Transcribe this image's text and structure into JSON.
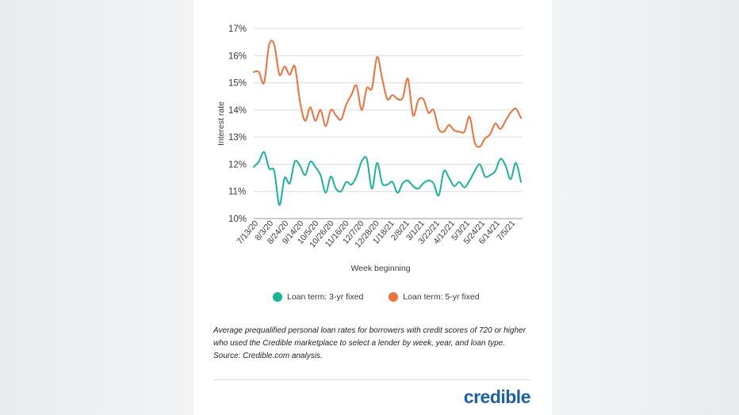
{
  "brand": {
    "logo_text": "credible"
  },
  "caption": "Average prequalified personal loan rates for borrowers with credit scores of 720 or higher who used the Credible marketplace to select a lender by week, year, and loan type. Source: Credible.com analysis.",
  "chart_data": {
    "type": "line",
    "title": "",
    "xlabel": "Week beginning",
    "ylabel": "Interest rate",
    "ylim": [
      10,
      17
    ],
    "yticks": [
      "10%",
      "11%",
      "12%",
      "13%",
      "14%",
      "15%",
      "16%",
      "17%"
    ],
    "x_tick_labels": [
      "7/13/20",
      "8/3/20",
      "8/24/20",
      "9/14/20",
      "10/5/20",
      "10/26/20",
      "11/16/20",
      "12/7/20",
      "12/28/20",
      "1/18/21",
      "2/8/21",
      "3/1/21",
      "3/22/21",
      "4/12/21",
      "5/3/21",
      "5/24/21",
      "6/14/21",
      "7/5/21"
    ],
    "grid": "horizontal",
    "legend_position": "bottom",
    "colors": {
      "3yr": "#17b49a",
      "5yr": "#f0703a"
    },
    "series": [
      {
        "name": "Loan term: 3-yr fixed",
        "color": "#17b49a",
        "values": [
          11.9,
          12.1,
          12.45,
          11.85,
          11.75,
          10.5,
          11.5,
          11.3,
          12.1,
          11.95,
          11.6,
          12.1,
          11.9,
          11.6,
          10.95,
          11.55,
          11.1,
          11.0,
          11.35,
          11.25,
          11.55,
          12.1,
          12.2,
          11.1,
          12.05,
          11.3,
          11.25,
          11.35,
          10.95,
          11.3,
          11.4,
          11.2,
          11.1,
          11.3,
          11.4,
          11.3,
          10.85,
          11.75,
          11.5,
          11.2,
          11.35,
          11.15,
          11.4,
          11.75,
          12.0,
          11.55,
          11.6,
          11.75,
          12.2,
          11.95,
          11.45,
          12.05,
          11.35
        ]
      },
      {
        "name": "Loan term: 5-yr fixed",
        "color": "#f0703a",
        "values": [
          15.4,
          15.4,
          15.0,
          16.4,
          16.4,
          15.3,
          15.6,
          15.3,
          15.6,
          14.3,
          13.6,
          14.1,
          13.6,
          14.0,
          13.4,
          14.0,
          13.8,
          13.65,
          14.2,
          14.55,
          14.9,
          14.0,
          14.8,
          14.8,
          15.95,
          15.15,
          14.4,
          14.55,
          14.4,
          14.45,
          15.15,
          13.8,
          14.35,
          14.4,
          13.9,
          14.0,
          13.3,
          13.2,
          13.45,
          13.25,
          13.2,
          13.2,
          13.75,
          12.8,
          12.65,
          12.95,
          13.1,
          13.5,
          13.3,
          13.6,
          13.9,
          14.05,
          13.7
        ]
      }
    ]
  }
}
